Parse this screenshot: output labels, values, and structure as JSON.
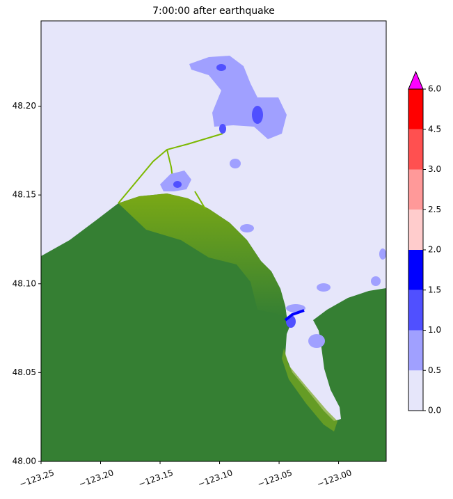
{
  "chart_data": {
    "type": "contour",
    "title": "7:00:00 after earthquake",
    "xlim": [
      -123.25,
      -122.96
    ],
    "ylim": [
      48.0,
      48.248
    ],
    "xticks": [
      {
        "value": -123.25,
        "label": "−123.25"
      },
      {
        "value": -123.2,
        "label": "−123.20"
      },
      {
        "value": -123.15,
        "label": "−123.15"
      },
      {
        "value": -123.1,
        "label": "−123.10"
      },
      {
        "value": -123.05,
        "label": "−123.05"
      },
      {
        "value": -123.0,
        "label": "−123.00"
      }
    ],
    "yticks": [
      {
        "value": 48.0,
        "label": "48.00"
      },
      48.05,
      {
        "value": 48.1,
        "label": "48.10"
      },
      48.15,
      {
        "value": 48.2,
        "label": "48.20"
      }
    ],
    "colorbar": {
      "levels": [
        {
          "value": 0,
          "label": "0.0"
        },
        0.5,
        {
          "value": 1,
          "label": "1.0"
        },
        1.5,
        {
          "value": 2,
          "label": "2.0"
        },
        2.5,
        {
          "value": 3,
          "label": "3.0"
        },
        4.5,
        {
          "value": 6,
          "label": "6.0"
        }
      ],
      "colors": [
        "#e6e6fa",
        "#a0a0ff",
        "#5050ff",
        "#0000ff",
        "#ffcccc",
        "#ff9999",
        "#ff5050",
        "#ff0000"
      ],
      "extend_color": "#ff00ff"
    }
  }
}
